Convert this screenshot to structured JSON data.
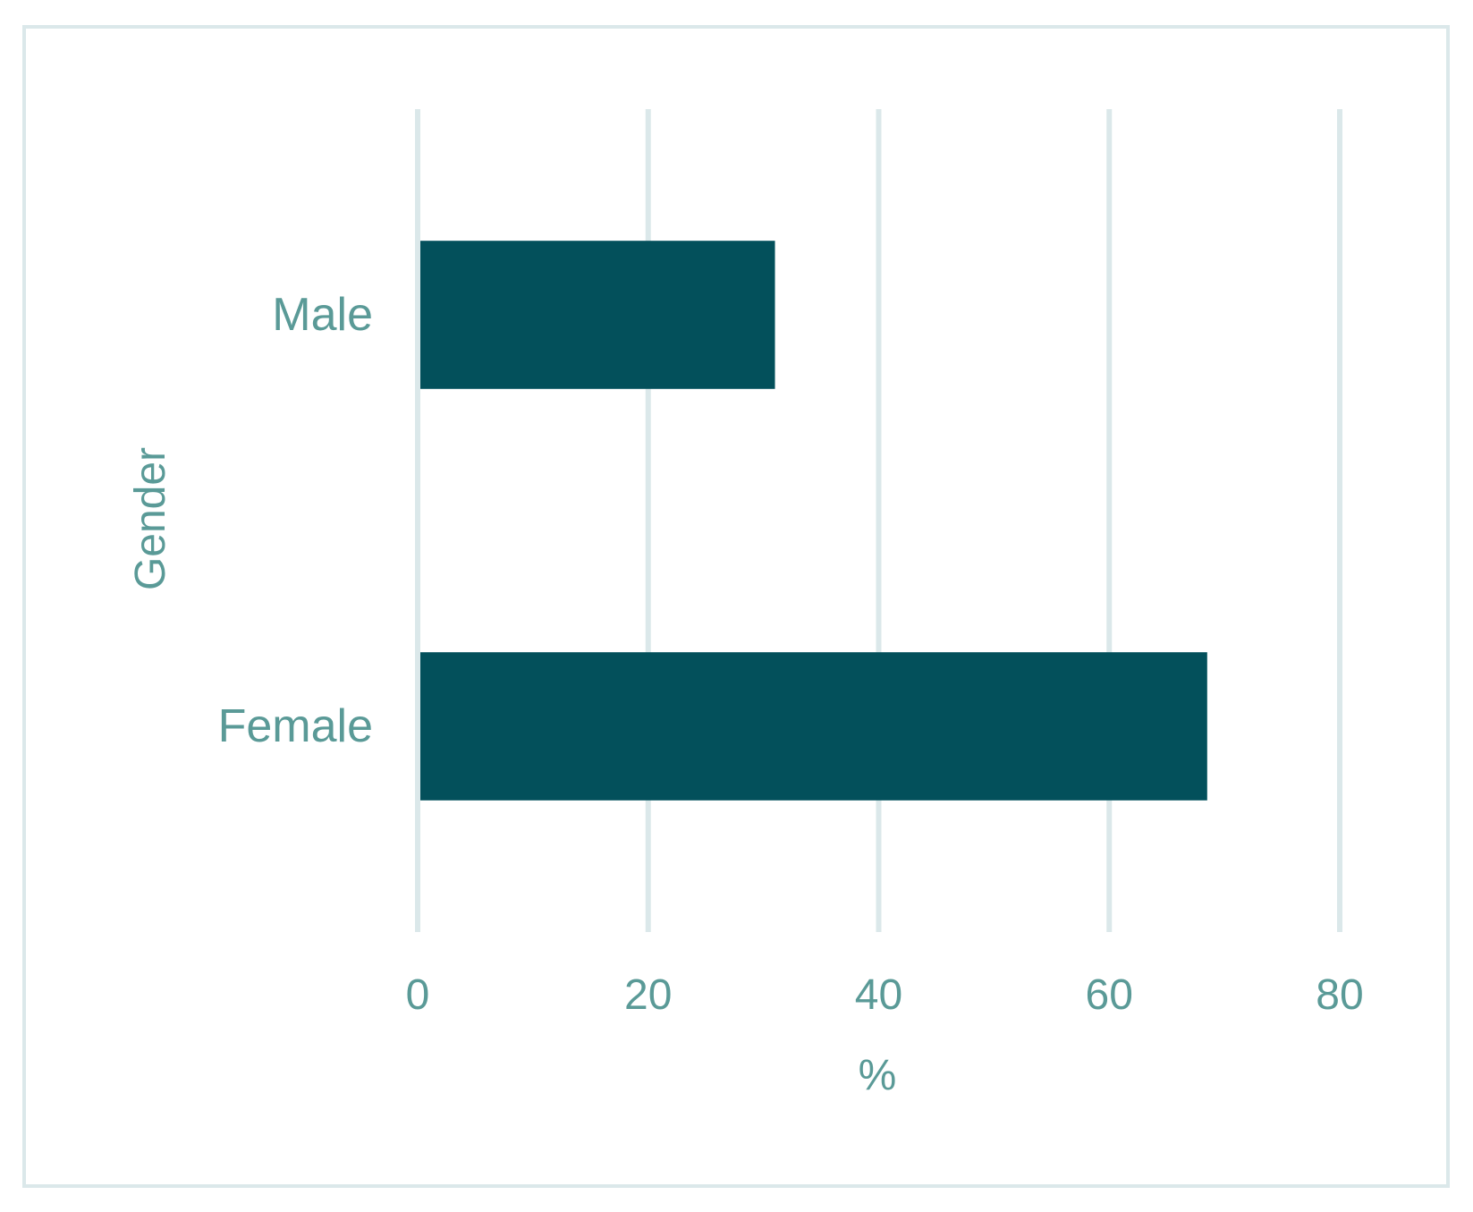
{
  "chart_data": {
    "type": "bar",
    "orientation": "horizontal",
    "categories": [
      "Male",
      "Female"
    ],
    "values": [
      31,
      68.5
    ],
    "xlabel": "%",
    "ylabel": "Gender",
    "xlim": [
      0,
      80
    ],
    "xticks": [
      "0",
      "20",
      "40",
      "60",
      "80"
    ],
    "grid": true,
    "legend": "none"
  },
  "colors": {
    "bar": "#03505b",
    "text": "#5a9a97",
    "grid": "#dbe8ea",
    "border": "#dbe8ea"
  }
}
